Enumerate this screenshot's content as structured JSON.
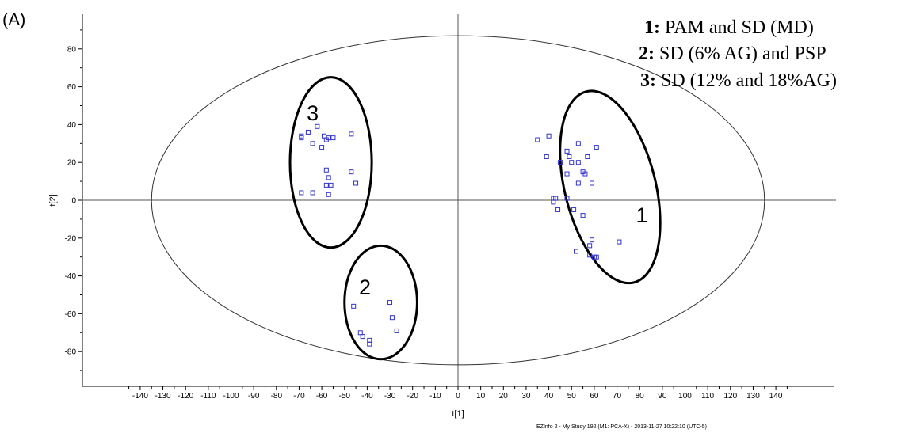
{
  "chart_data": {
    "type": "scatter",
    "panel_label": "(A)",
    "xlabel": "t[1]",
    "ylabel": "t[2]",
    "xlim": [
      -150,
      150
    ],
    "ylim": [
      -96,
      98
    ],
    "x_ticks": [
      -140,
      -130,
      -120,
      -110,
      -100,
      -90,
      -80,
      -70,
      -60,
      -50,
      -40,
      -30,
      -20,
      -10,
      0,
      10,
      20,
      30,
      40,
      50,
      60,
      70,
      80,
      90,
      100,
      110,
      120,
      130,
      140
    ],
    "y_ticks": [
      -80,
      -60,
      -40,
      -20,
      0,
      20,
      40,
      60,
      80
    ],
    "grid": false,
    "marker": "hollow-square",
    "marker_color": "#3333cc",
    "hotelling_ellipse": {
      "a": 135,
      "b": 87
    },
    "legend": [
      {
        "key": "1:",
        "text": "PAM and SD (MD)"
      },
      {
        "key": "2:",
        "text": "SD (6% AG) and PSP"
      },
      {
        "key": "3:",
        "text": "SD (12% and 18%AG)"
      }
    ],
    "groups": [
      {
        "label": "1",
        "center": [
          67,
          7
        ],
        "rx": 20,
        "ry": 52,
        "angle": -14,
        "label_at": [
          81,
          -8
        ]
      },
      {
        "label": "2",
        "center": [
          -34,
          -54
        ],
        "rx": 16,
        "ry": 30,
        "angle": 0,
        "label_at": [
          -41,
          -46
        ]
      },
      {
        "label": "3",
        "center": [
          -56,
          20
        ],
        "rx": 18,
        "ry": 45,
        "angle": 0,
        "label_at": [
          -64,
          46
        ]
      }
    ],
    "points": [
      [
        35,
        32
      ],
      [
        40,
        34
      ],
      [
        39,
        23
      ],
      [
        48,
        26
      ],
      [
        49,
        23
      ],
      [
        50,
        20
      ],
      [
        53,
        30
      ],
      [
        57,
        23
      ],
      [
        61,
        28
      ],
      [
        45,
        20
      ],
      [
        48,
        14
      ],
      [
        53,
        20
      ],
      [
        55,
        15
      ],
      [
        56,
        14
      ],
      [
        53,
        9
      ],
      [
        59,
        9
      ],
      [
        42,
        1
      ],
      [
        43,
        1
      ],
      [
        42,
        -1
      ],
      [
        48,
        1
      ],
      [
        44,
        -5
      ],
      [
        51,
        -5
      ],
      [
        55,
        -8
      ],
      [
        59,
        -21
      ],
      [
        58,
        -24
      ],
      [
        52,
        -27
      ],
      [
        58,
        -29
      ],
      [
        60,
        -30
      ],
      [
        61,
        -30
      ],
      [
        71,
        -22
      ],
      [
        -46,
        -56
      ],
      [
        -30,
        -54
      ],
      [
        -29,
        -62
      ],
      [
        -43,
        -70
      ],
      [
        -42,
        -72
      ],
      [
        -39,
        -74
      ],
      [
        -39,
        -76
      ],
      [
        -27,
        -69
      ],
      [
        -62,
        39
      ],
      [
        -66,
        36
      ],
      [
        -69,
        34
      ],
      [
        -69,
        33
      ],
      [
        -59,
        34
      ],
      [
        -57,
        33
      ],
      [
        -55,
        33
      ],
      [
        -47,
        35
      ],
      [
        -58,
        32
      ],
      [
        -60,
        28
      ],
      [
        -64,
        30
      ],
      [
        -58,
        16
      ],
      [
        -57,
        12
      ],
      [
        -47,
        15
      ],
      [
        -69,
        4
      ],
      [
        -64,
        4
      ],
      [
        -58,
        8
      ],
      [
        -56,
        8
      ],
      [
        -57,
        3
      ],
      [
        -45,
        9
      ]
    ]
  },
  "footer": "EZInfo 2 - My Study 192 (M1: PCA-X) - 2013-11-27 10:22:10 (UTC-5)"
}
